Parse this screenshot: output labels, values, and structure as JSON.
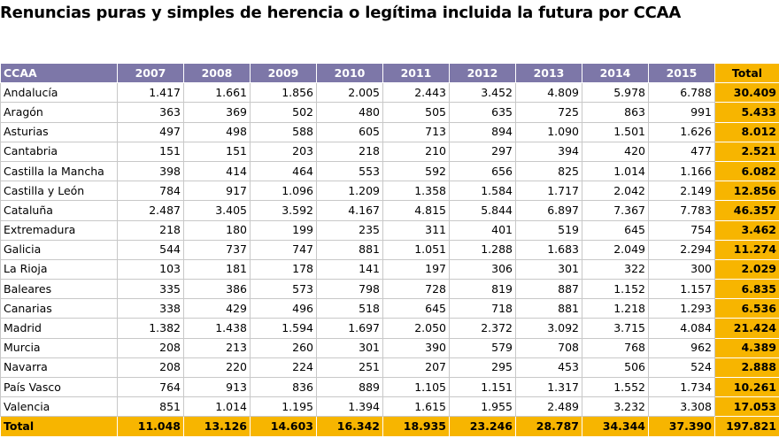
{
  "title": "Renuncias puras y simples de herencia o legítima incluida la futura por CCAA",
  "columns": [
    "CCAA",
    "2007",
    "2008",
    "2009",
    "2010",
    "2011",
    "2012",
    "2013",
    "2014",
    "2015",
    "Total"
  ],
  "rows": [
    [
      "Andalucía",
      "1.417",
      "1.661",
      "1.856",
      "2.005",
      "2.443",
      "3.452",
      "4.809",
      "5.978",
      "6.788",
      "30.409"
    ],
    [
      "Aragón",
      "363",
      "369",
      "502",
      "480",
      "505",
      "635",
      "725",
      "863",
      "991",
      "5.433"
    ],
    [
      "Asturias",
      "497",
      "498",
      "588",
      "605",
      "713",
      "894",
      "1.090",
      "1.501",
      "1.626",
      "8.012"
    ],
    [
      "Cantabria",
      "151",
      "151",
      "203",
      "218",
      "210",
      "297",
      "394",
      "420",
      "477",
      "2.521"
    ],
    [
      "Castilla la Mancha",
      "398",
      "414",
      "464",
      "553",
      "592",
      "656",
      "825",
      "1.014",
      "1.166",
      "6.082"
    ],
    [
      "Castilla y León",
      "784",
      "917",
      "1.096",
      "1.209",
      "1.358",
      "1.584",
      "1.717",
      "2.042",
      "2.149",
      "12.856"
    ],
    [
      "Cataluña",
      "2.487",
      "3.405",
      "3.592",
      "4.167",
      "4.815",
      "5.844",
      "6.897",
      "7.367",
      "7.783",
      "46.357"
    ],
    [
      "Extremadura",
      "218",
      "180",
      "199",
      "235",
      "311",
      "401",
      "519",
      "645",
      "754",
      "3.462"
    ],
    [
      "Galicia",
      "544",
      "737",
      "747",
      "881",
      "1.051",
      "1.288",
      "1.683",
      "2.049",
      "2.294",
      "11.274"
    ],
    [
      "La Rioja",
      "103",
      "181",
      "178",
      "141",
      "197",
      "306",
      "301",
      "322",
      "300",
      "2.029"
    ],
    [
      "Baleares",
      "335",
      "386",
      "573",
      "798",
      "728",
      "819",
      "887",
      "1.152",
      "1.157",
      "6.835"
    ],
    [
      "Canarias",
      "338",
      "429",
      "496",
      "518",
      "645",
      "718",
      "881",
      "1.218",
      "1.293",
      "6.536"
    ],
    [
      "Madrid",
      "1.382",
      "1.438",
      "1.594",
      "1.697",
      "2.050",
      "2.372",
      "3.092",
      "3.715",
      "4.084",
      "21.424"
    ],
    [
      "Murcia",
      "208",
      "213",
      "260",
      "301",
      "390",
      "579",
      "708",
      "768",
      "962",
      "4.389"
    ],
    [
      "Navarra",
      "208",
      "220",
      "224",
      "251",
      "207",
      "295",
      "453",
      "506",
      "524",
      "2.888"
    ],
    [
      "País Vasco",
      "764",
      "913",
      "836",
      "889",
      "1.105",
      "1.151",
      "1.317",
      "1.552",
      "1.734",
      "10.261"
    ],
    [
      "Valencia",
      "851",
      "1.014",
      "1.195",
      "1.394",
      "1.615",
      "1.955",
      "2.489",
      "3.232",
      "3.308",
      "17.053"
    ]
  ],
  "total_row": [
    "Total",
    "11.048",
    "13.126",
    "14.603",
    "16.342",
    "18.935",
    "23.246",
    "28.787",
    "34.344",
    "37.390",
    "197.821"
  ],
  "colors": {
    "header": "#7d77a8",
    "total_highlight": "#f7b500"
  }
}
